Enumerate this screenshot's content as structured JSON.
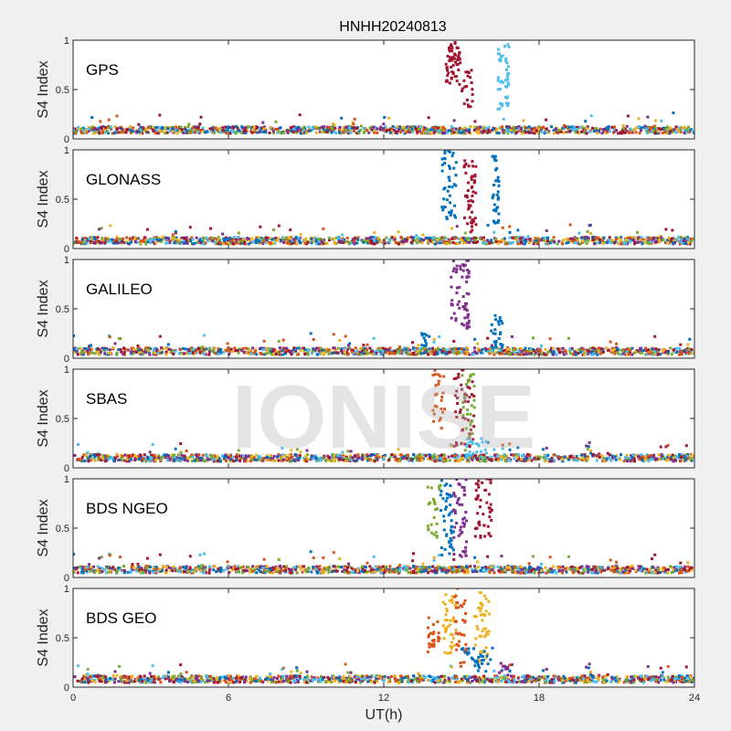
{
  "chart_data": {
    "type": "scatter",
    "title": "HNHH20240813",
    "xlabel": "UT(h)",
    "ylabel": "S4 Index",
    "xlim": [
      0,
      24
    ],
    "ylim": [
      0,
      1
    ],
    "x_ticks": [
      "0",
      "6",
      "12",
      "18",
      "24"
    ],
    "y_ticks": [
      "0",
      "0.5",
      "1"
    ],
    "watermark": "IONISE",
    "grid": false,
    "colors": [
      "#0072bd",
      "#d95319",
      "#edb120",
      "#7e2f8e",
      "#77ac30",
      "#4dbeee",
      "#a2142f"
    ],
    "panels": [
      {
        "label": "GPS",
        "baseline": 0.09,
        "bursts": [
          {
            "x_range": [
              14.4,
              14.95
            ],
            "y_range": [
              0.55,
              1.0
            ],
            "color": 6,
            "count": 55
          },
          {
            "x_range": [
              15.0,
              15.45
            ],
            "y_range": [
              0.3,
              0.7
            ],
            "color": 6,
            "count": 20
          },
          {
            "x_range": [
              16.4,
              16.85
            ],
            "y_range": [
              0.3,
              1.0
            ],
            "color": 5,
            "count": 45
          }
        ]
      },
      {
        "label": "GLONASS",
        "baseline": 0.08,
        "bursts": [
          {
            "x_range": [
              14.25,
              14.8
            ],
            "y_range": [
              0.3,
              1.0
            ],
            "color": 0,
            "count": 45
          },
          {
            "x_range": [
              15.1,
              15.6
            ],
            "y_range": [
              0.15,
              0.9
            ],
            "color": 6,
            "count": 50
          },
          {
            "x_range": [
              16.2,
              16.45
            ],
            "y_range": [
              0.2,
              1.0
            ],
            "color": 0,
            "count": 35
          }
        ]
      },
      {
        "label": "GALILEO",
        "baseline": 0.07,
        "bursts": [
          {
            "x_range": [
              14.6,
              15.3
            ],
            "y_range": [
              0.3,
              1.0
            ],
            "color": 3,
            "count": 60
          },
          {
            "x_range": [
              16.1,
              16.6
            ],
            "y_range": [
              0.1,
              0.45
            ],
            "color": 0,
            "count": 25
          },
          {
            "x_range": [
              13.4,
              13.8
            ],
            "y_range": [
              0.1,
              0.25
            ],
            "color": 0,
            "count": 12
          }
        ]
      },
      {
        "label": "SBAS",
        "baseline": 0.1,
        "bursts": [
          {
            "x_range": [
              13.9,
              14.35
            ],
            "y_range": [
              0.4,
              1.0
            ],
            "color": 1,
            "count": 25
          },
          {
            "x_range": [
              14.7,
              15.5
            ],
            "y_range": [
              0.2,
              1.0
            ],
            "color": 6,
            "count": 50
          },
          {
            "x_range": [
              15.0,
              15.5
            ],
            "y_range": [
              0.3,
              0.95
            ],
            "color": 4,
            "count": 25
          },
          {
            "x_range": [
              15.2,
              16.0
            ],
            "y_range": [
              0.1,
              0.3
            ],
            "color": 5,
            "count": 25
          }
        ]
      },
      {
        "label": "BDS NGEO",
        "baseline": 0.08,
        "bursts": [
          {
            "x_range": [
              13.7,
              14.2
            ],
            "y_range": [
              0.4,
              1.0
            ],
            "color": 4,
            "count": 25
          },
          {
            "x_range": [
              14.2,
              14.7
            ],
            "y_range": [
              0.2,
              1.0
            ],
            "color": 0,
            "count": 45
          },
          {
            "x_range": [
              14.7,
              15.2
            ],
            "y_range": [
              0.2,
              1.0
            ],
            "color": 3,
            "count": 45
          },
          {
            "x_range": [
              15.5,
              16.2
            ],
            "y_range": [
              0.4,
              1.0
            ],
            "color": 6,
            "count": 45
          }
        ]
      },
      {
        "label": "BDS GEO",
        "baseline": 0.08,
        "bursts": [
          {
            "x_range": [
              13.7,
              14.15
            ],
            "y_range": [
              0.35,
              0.72
            ],
            "color": 1,
            "count": 25
          },
          {
            "x_range": [
              14.3,
              14.8
            ],
            "y_range": [
              0.3,
              0.95
            ],
            "color": 2,
            "count": 40
          },
          {
            "x_range": [
              14.7,
              15.2
            ],
            "y_range": [
              0.2,
              1.0
            ],
            "color": 1,
            "count": 35
          },
          {
            "x_range": [
              15.5,
              16.1
            ],
            "y_range": [
              0.25,
              1.0
            ],
            "color": 2,
            "count": 45
          },
          {
            "x_range": [
              15.0,
              16.2
            ],
            "y_range": [
              0.15,
              0.4
            ],
            "color": 0,
            "count": 30
          },
          {
            "x_range": [
              16.4,
              16.8
            ],
            "y_range": [
              0.1,
              0.25
            ],
            "color": 3,
            "count": 10
          }
        ]
      }
    ]
  }
}
